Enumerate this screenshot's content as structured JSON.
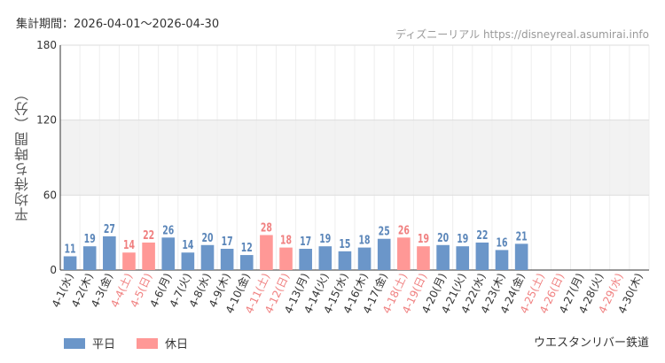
{
  "header": {
    "period": "集計期間：2026-04-01～2026-04-30",
    "watermark": "ディズニーリアル https://disneyreal.asumirai.info"
  },
  "attraction": "ウエスタンリバー鉄道",
  "legend": [
    {
      "label": "平日",
      "color": "#6b96c9"
    },
    {
      "label": "休日",
      "color": "#ff9896"
    }
  ],
  "chart_data": {
    "type": "bar",
    "ylabel": "平均待ち時間（分）",
    "ylim": [
      0,
      180
    ],
    "yticks": [
      0,
      60,
      120,
      180
    ],
    "grid": true,
    "legend_position": "bottom-left",
    "colors": {
      "weekday": "#6b96c9",
      "holiday": "#ff9896",
      "weekday_text": "#5b86b9",
      "holiday_text": "#f08080"
    },
    "categories": [
      "4-1(水)",
      "4-2(木)",
      "4-3(金)",
      "4-4(土)",
      "4-5(日)",
      "4-6(月)",
      "4-7(火)",
      "4-8(水)",
      "4-9(木)",
      "4-10(金)",
      "4-11(土)",
      "4-12(日)",
      "4-13(月)",
      "4-14(火)",
      "4-15(水)",
      "4-16(木)",
      "4-17(金)",
      "4-18(土)",
      "4-19(日)",
      "4-20(月)",
      "4-21(火)",
      "4-22(水)",
      "4-23(木)",
      "4-24(金)",
      "4-25(土)",
      "4-26(日)",
      "4-27(月)",
      "4-28(火)",
      "4-29(水)",
      "4-30(木)"
    ],
    "values": [
      11,
      19,
      27,
      14,
      22,
      26,
      14,
      20,
      17,
      12,
      28,
      18,
      17,
      19,
      15,
      18,
      25,
      26,
      19,
      20,
      19,
      22,
      16,
      21,
      null,
      null,
      null,
      null,
      null,
      null
    ],
    "holiday": [
      false,
      false,
      false,
      true,
      true,
      false,
      false,
      false,
      false,
      false,
      true,
      true,
      false,
      false,
      false,
      false,
      false,
      true,
      true,
      false,
      false,
      false,
      false,
      false,
      true,
      true,
      false,
      false,
      true,
      false
    ]
  }
}
